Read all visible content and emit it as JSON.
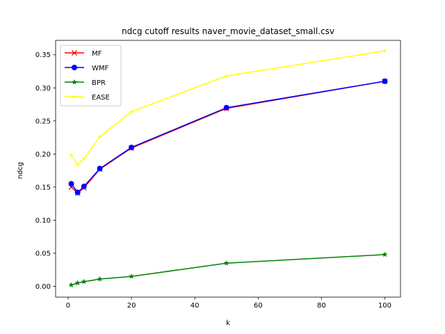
{
  "chart_data": {
    "type": "line",
    "title": "ndcg cutoff results naver_movie_dataset_small.csv",
    "xlabel": "k",
    "ylabel": "ndcg",
    "x": [
      1,
      3,
      5,
      10,
      20,
      50,
      100
    ],
    "xlim": [
      -3.95,
      104.95
    ],
    "ylim": [
      -0.0163,
      0.3718
    ],
    "xticks": [
      0,
      20,
      40,
      60,
      80,
      100
    ],
    "yticks": [
      0.0,
      0.05,
      0.1,
      0.15,
      0.2,
      0.25,
      0.3,
      0.35
    ],
    "grid": false,
    "legend_position": "top-left",
    "series": [
      {
        "name": "MF",
        "color": "#ff0000",
        "marker": "x",
        "values": [
          0.15,
          0.141,
          0.149,
          0.177,
          0.209,
          0.269,
          0.31
        ]
      },
      {
        "name": "WMF",
        "color": "#0000ff",
        "marker": "circle",
        "values": [
          0.155,
          0.142,
          0.151,
          0.178,
          0.21,
          0.27,
          0.31
        ]
      },
      {
        "name": "BPR",
        "color": "#008000",
        "marker": "star",
        "values": [
          0.002,
          0.005,
          0.007,
          0.011,
          0.015,
          0.035,
          0.048
        ]
      },
      {
        "name": "EASE",
        "color": "#ffff00",
        "marker": "point",
        "values": [
          0.198,
          0.184,
          0.193,
          0.226,
          0.264,
          0.318,
          0.356
        ]
      }
    ]
  }
}
